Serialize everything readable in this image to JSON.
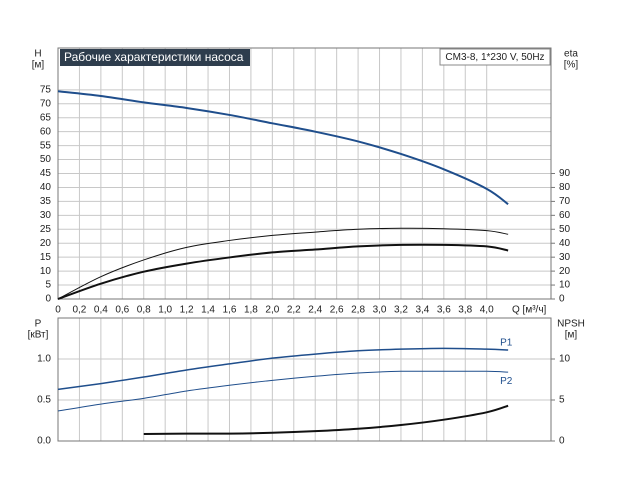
{
  "chart_data": [
    {
      "type": "line",
      "title": "Рабочие характеристики насоса",
      "subtitle": "CM3-8, 1*230 V, 50Hz",
      "ylabel": "H",
      "yunit": "[м]",
      "y2label": "eta",
      "y2unit": "[%]",
      "xlabel": "Q [м³/ч]",
      "x": [
        0,
        0.4,
        0.8,
        1.2,
        1.6,
        2.0,
        2.4,
        2.8,
        3.2,
        3.6,
        4.0,
        4.2
      ],
      "xlim": [
        0,
        4.6
      ],
      "xticks": [
        0,
        {
          "value": 0.2,
          "label": "0,2"
        },
        {
          "value": 0.4,
          "label": "0,4"
        },
        {
          "value": 0.6,
          "label": "0,6"
        },
        {
          "value": 0.8,
          "label": "0,8"
        },
        {
          "value": 1.0,
          "label": "1,0"
        },
        {
          "value": 1.2,
          "label": "1,2"
        },
        {
          "value": 1.4,
          "label": "1,4"
        },
        {
          "value": 1.6,
          "label": "1,6"
        },
        {
          "value": 1.8,
          "label": "1,8"
        },
        {
          "value": 2.0,
          "label": "2,0"
        },
        {
          "value": 2.2,
          "label": "2,2"
        },
        {
          "value": 2.4,
          "label": "2,4"
        },
        {
          "value": 2.6,
          "label": "2,6"
        },
        {
          "value": 2.8,
          "label": "2,8"
        },
        {
          "value": 3.0,
          "label": "3,0"
        },
        {
          "value": 3.2,
          "label": "3,2"
        },
        {
          "value": 3.4,
          "label": "3,4"
        },
        {
          "value": 3.6,
          "label": "3,6"
        },
        {
          "value": 3.8,
          "label": "3,8"
        },
        {
          "value": 4.0,
          "label": "4,0"
        }
      ],
      "ylim": [
        0,
        90
      ],
      "yticks": [
        0,
        5,
        10,
        15,
        20,
        25,
        30,
        35,
        40,
        45,
        50,
        55,
        60,
        65,
        70,
        75
      ],
      "y2lim": [
        0,
        180
      ],
      "y2ticks": [
        0,
        10,
        20,
        30,
        40,
        50,
        60,
        70,
        80,
        90
      ],
      "series": [
        {
          "color": "#1f4e8c",
          "width": 2,
          "values": [
            74.5,
            72.8,
            70.5,
            68.5,
            66,
            63,
            60,
            56.5,
            52,
            46.5,
            39.5,
            34
          ]
        },
        {
          "color": "#111111",
          "width": 1,
          "axis": "y2",
          "values": [
            0,
            16,
            28,
            37,
            42,
            45.6,
            48,
            50,
            50.7,
            50.4,
            49,
            46.4
          ]
        },
        {
          "color": "#111111",
          "width": 2,
          "axis": "y2",
          "values": [
            0,
            11,
            19.6,
            25.4,
            29.8,
            33.4,
            35.5,
            37.7,
            38.8,
            38.8,
            37.7,
            34.8
          ]
        }
      ]
    },
    {
      "type": "line",
      "ylabel": "P",
      "yunit": "[кВт]",
      "y2label": "NPSH",
      "y2unit": "[м]",
      "x": [
        0,
        0.4,
        0.8,
        1.2,
        1.6,
        2.0,
        2.4,
        2.8,
        3.2,
        3.6,
        4.0,
        4.2
      ],
      "xlim": [
        0,
        4.6
      ],
      "ylim": [
        0,
        1.5
      ],
      "yticks": [
        {
          "value": 0,
          "label": "0.0"
        },
        {
          "value": 0.5,
          "label": "0.5"
        },
        {
          "value": 1,
          "label": "1.0"
        }
      ],
      "y2lim": [
        0,
        15
      ],
      "y2ticks": [
        0,
        5,
        10
      ],
      "series": [
        {
          "name": "P1",
          "color": "#1f4e8c",
          "width": 1.5,
          "values": [
            0.63,
            0.7,
            0.78,
            0.866,
            0.94,
            1.01,
            1.06,
            1.1,
            1.12,
            1.13,
            1.12,
            1.11
          ]
        },
        {
          "name": "P2",
          "color": "#1f4e8c",
          "width": 1,
          "values": [
            0.366,
            0.45,
            0.52,
            0.61,
            0.68,
            0.74,
            0.79,
            0.83,
            0.85,
            0.85,
            0.85,
            0.84
          ]
        },
        {
          "color": "#111111",
          "width": 2,
          "axis": "y2",
          "values": [
            null,
            null,
            0.85,
            0.9,
            0.9,
            1.0,
            1.2,
            1.5,
            1.95,
            2.6,
            3.5,
            4.3
          ]
        }
      ]
    }
  ]
}
